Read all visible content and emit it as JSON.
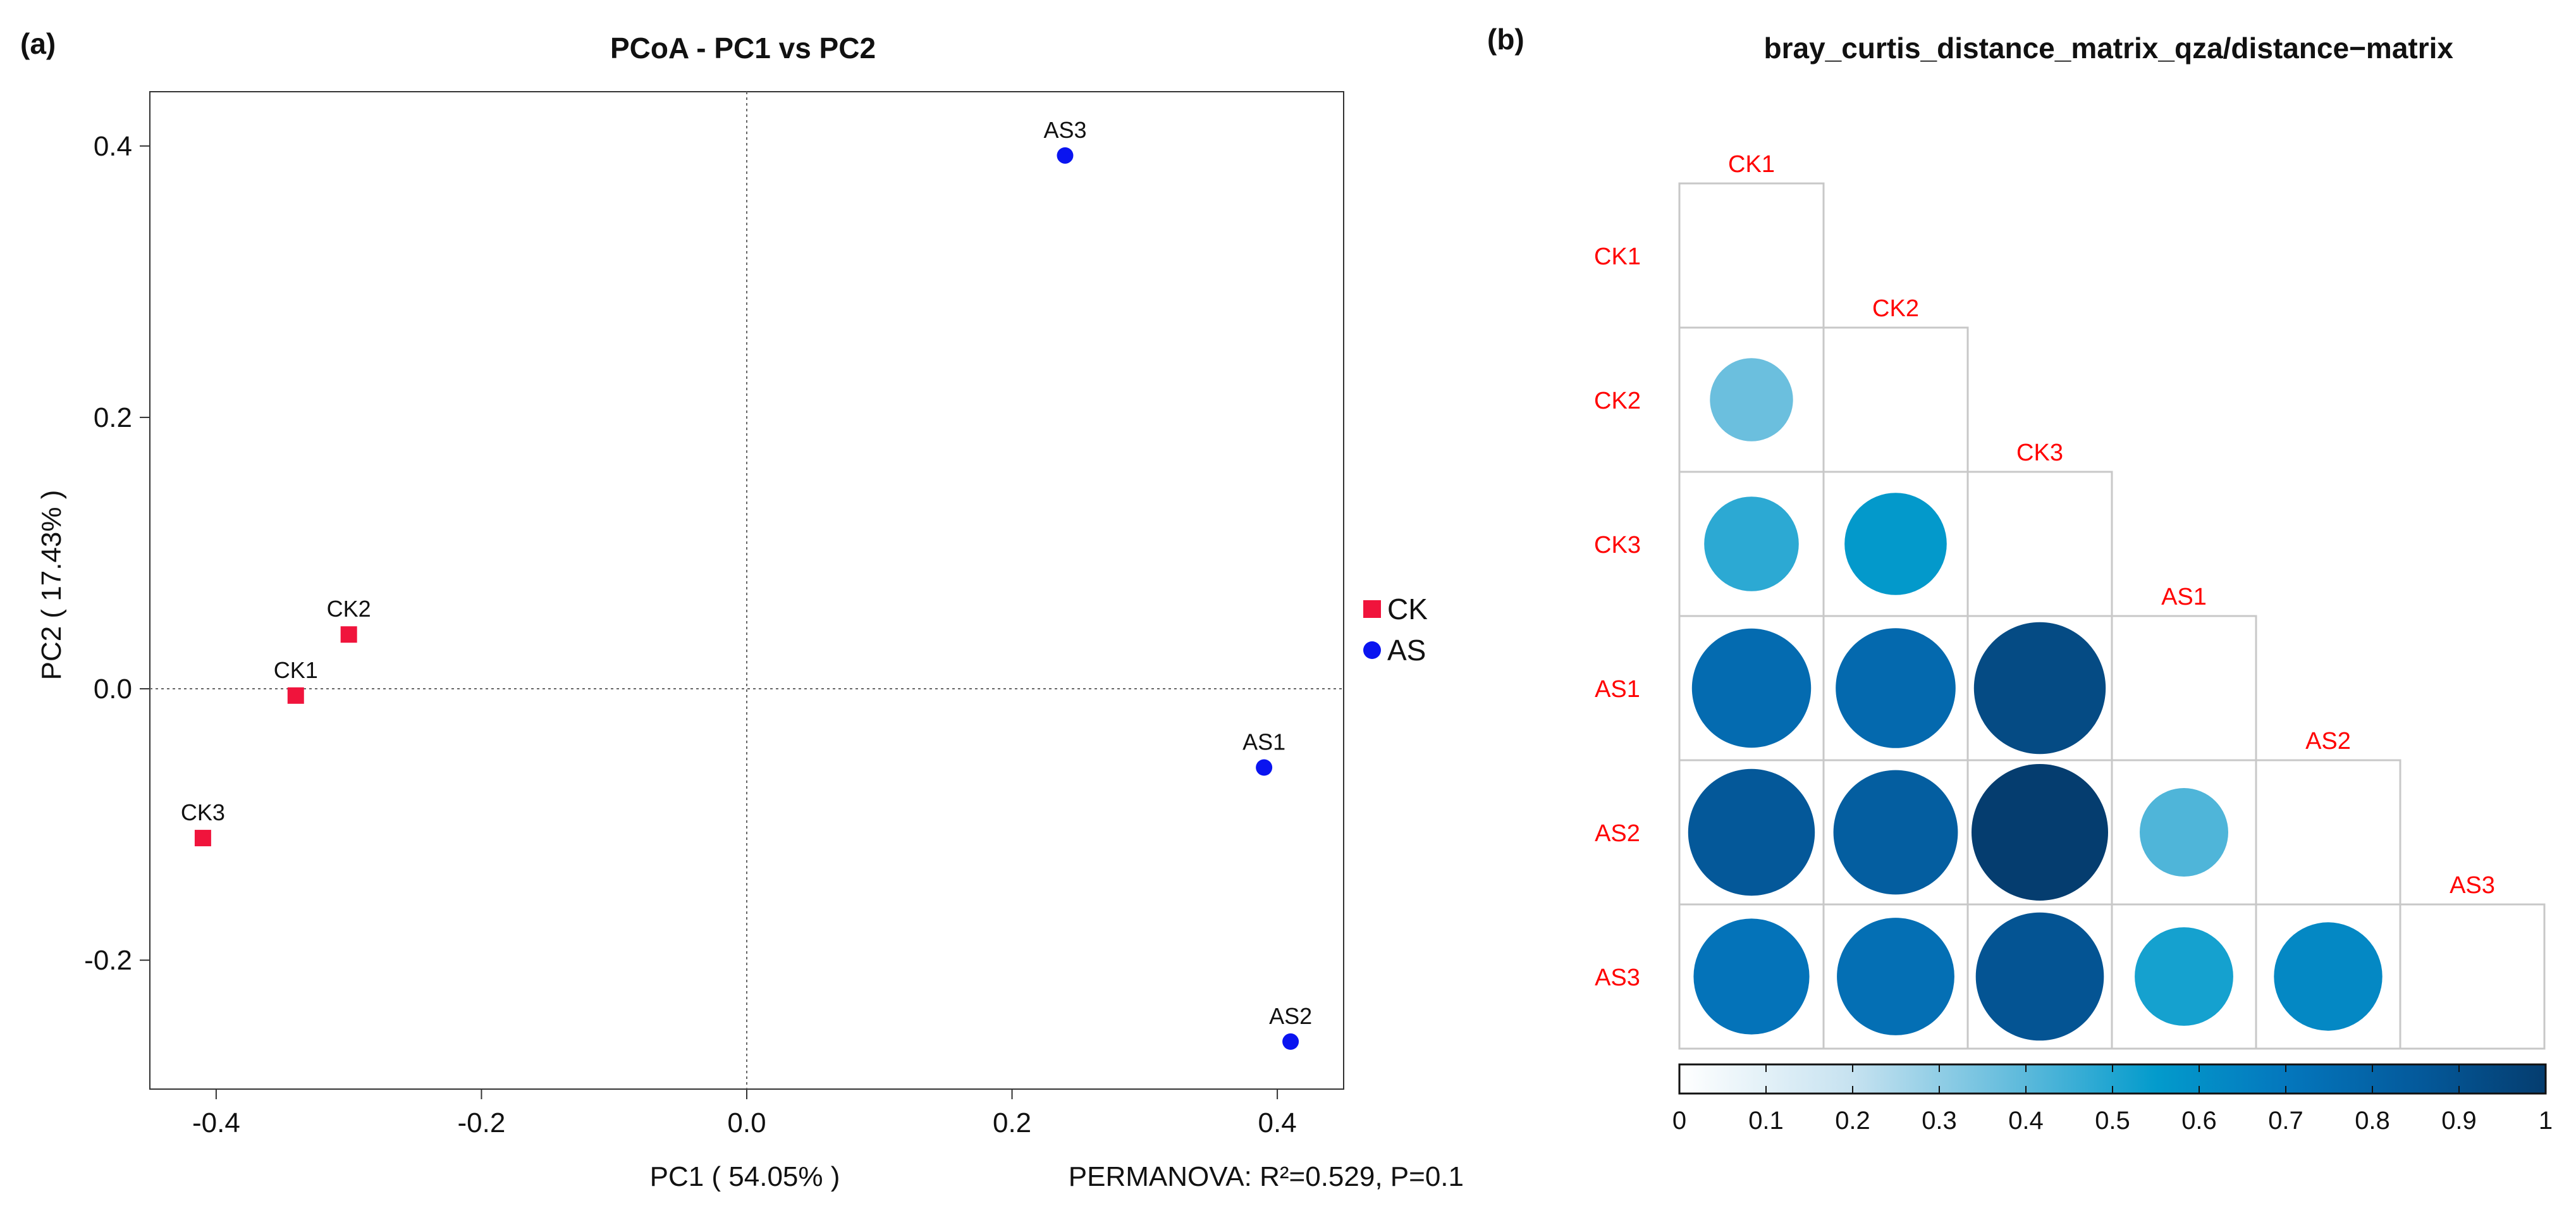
{
  "panel_a": {
    "tag": "(a)",
    "footnote": "PERMANOVA: R²=0.529, P=0.1"
  },
  "panel_b": {
    "tag": "(b)"
  },
  "chart_data": [
    {
      "type": "scatter",
      "title": "PCoA - PC1 vs PC2",
      "xlabel": "PC1 ( 54.05% )",
      "ylabel": "PC2 ( 17.43% )",
      "xlim": [
        -0.45,
        0.45
      ],
      "ylim": [
        -0.295,
        0.44
      ],
      "xticks": [
        -0.4,
        -0.2,
        0.0,
        0.2,
        0.4
      ],
      "xtick_labels": [
        "-0.4",
        "-0.2",
        "0.0",
        "0.2",
        "0.4"
      ],
      "yticks": [
        -0.2,
        0.0,
        0.2,
        0.4
      ],
      "ytick_labels": [
        "-0.2",
        "0.0",
        "0.2",
        "0.4"
      ],
      "reference_lines": {
        "x": 0.0,
        "y": 0.0,
        "style": "dotted"
      },
      "grid": false,
      "legend_position": "right",
      "series": [
        {
          "name": "CK",
          "marker": "square",
          "color": "#f0143c",
          "points": [
            {
              "label": "CK1",
              "x": -0.34,
              "y": -0.005
            },
            {
              "label": "CK2",
              "x": -0.3,
              "y": 0.04
            },
            {
              "label": "CK3",
              "x": -0.41,
              "y": -0.11
            }
          ]
        },
        {
          "name": "AS",
          "marker": "circle",
          "color": "#0a14f0",
          "points": [
            {
              "label": "AS1",
              "x": 0.39,
              "y": -0.058
            },
            {
              "label": "AS2",
              "x": 0.41,
              "y": -0.26
            },
            {
              "label": "AS3",
              "x": 0.24,
              "y": 0.393
            }
          ]
        }
      ]
    },
    {
      "type": "heatmap",
      "subtype": "lower-triangle correlogram (circle size and colour = distance)",
      "title": "bray_curtis_distance_matrix_qza/distance−matrix",
      "labels": [
        "CK1",
        "CK2",
        "CK3",
        "AS1",
        "AS2",
        "AS3"
      ],
      "label_color": "#ff0000",
      "values": [
        [
          0.0,
          null,
          null,
          null,
          null,
          null
        ],
        [
          0.37,
          0.0,
          null,
          null,
          null,
          null
        ],
        [
          0.48,
          0.56,
          0.0,
          null,
          null,
          null
        ],
        [
          0.76,
          0.77,
          0.93,
          0.0,
          null,
          null
        ],
        [
          0.86,
          0.83,
          1.0,
          0.42,
          0.0,
          null
        ],
        [
          0.72,
          0.74,
          0.88,
          0.52,
          0.63,
          0.0
        ]
      ],
      "colorbar": {
        "min": 0,
        "max": 1,
        "ticks": [
          0,
          0.1,
          0.2,
          0.3,
          0.4,
          0.5,
          0.6,
          0.7,
          0.8,
          0.9,
          1
        ],
        "tick_labels": [
          "0",
          "0.1",
          "0.2",
          "0.3",
          "0.4",
          "0.5",
          "0.6",
          "0.7",
          "0.8",
          "0.9",
          "1"
        ],
        "stops": [
          {
            "v": 0.0,
            "color": "#ffffff"
          },
          {
            "v": 0.2,
            "color": "#c6e2f0"
          },
          {
            "v": 0.4,
            "color": "#5bb9db"
          },
          {
            "v": 0.55,
            "color": "#039bcc"
          },
          {
            "v": 0.7,
            "color": "#0477bd"
          },
          {
            "v": 0.85,
            "color": "#045a9c"
          },
          {
            "v": 1.0,
            "color": "#053d6f"
          }
        ]
      }
    }
  ]
}
